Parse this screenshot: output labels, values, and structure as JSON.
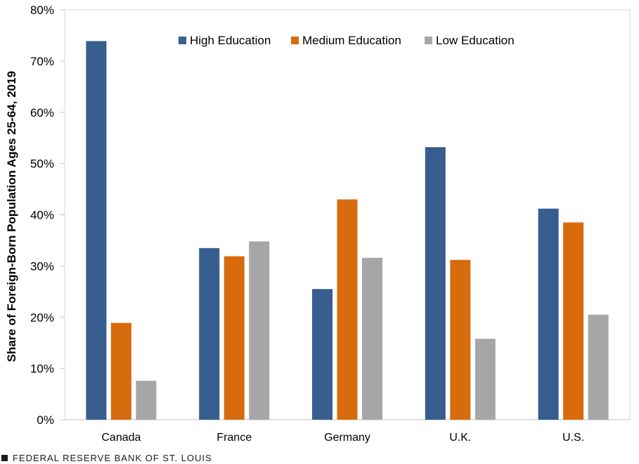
{
  "chart_data": {
    "type": "bar",
    "title": "",
    "xlabel": "",
    "ylabel": "Share of Foreign-Born Population Ages 25-64, 2019",
    "ylim": [
      0,
      80
    ],
    "yticks": [
      0,
      10,
      20,
      30,
      40,
      50,
      60,
      70,
      80
    ],
    "ytick_labels": [
      "0%",
      "10%",
      "20%",
      "30%",
      "40%",
      "50%",
      "60%",
      "70%",
      "80%"
    ],
    "categories": [
      "Canada",
      "France",
      "Germany",
      "U.K.",
      "U.S."
    ],
    "series": [
      {
        "name": "High Education",
        "color": "#375e8f",
        "values": [
          73.9,
          33.5,
          25.5,
          53.2,
          41.2
        ]
      },
      {
        "name": "Medium Education",
        "color": "#d86b0e",
        "values": [
          18.9,
          31.9,
          43.0,
          31.2,
          38.5
        ]
      },
      {
        "name": "Low Education",
        "color": "#a6a6a6",
        "values": [
          7.6,
          34.8,
          31.6,
          15.8,
          20.5
        ]
      }
    ],
    "legend_position": "top-center",
    "grid": false
  },
  "footer": {
    "source": "FEDERAL RESERVE BANK OF ST. LOUIS",
    "icon": "square-icon"
  }
}
